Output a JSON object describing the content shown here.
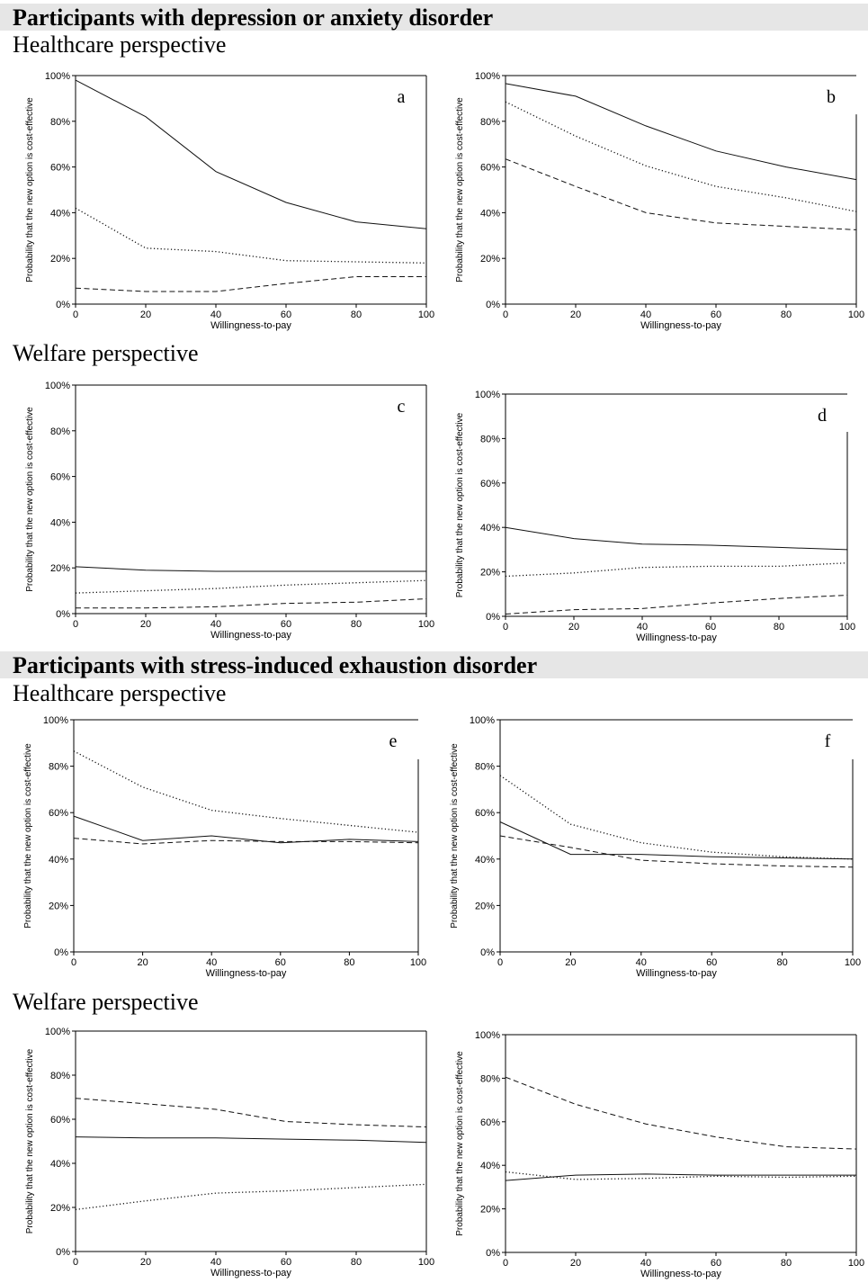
{
  "sections": [
    {
      "title": "Participants with depression or anxiety disorder",
      "healthcare_label": "Healthcare perspective",
      "welfare_label": "Welfare perspective"
    },
    {
      "title": "Participants with stress-induced exhaustion disorder",
      "healthcare_label": "Healthcare perspective",
      "welfare_label": "Welfare perspective"
    }
  ],
  "chart_data": [
    {
      "id": "a",
      "type": "line",
      "panel_label": "a",
      "xlabel": "Willingness-to-pay",
      "ylabel": "Probability that the new option is cost-effective",
      "x": [
        0,
        20,
        40,
        60,
        80,
        100
      ],
      "xlim": [
        0,
        100
      ],
      "ylim": [
        0,
        100
      ],
      "xticks": [
        "0",
        "20",
        "40",
        "60",
        "80",
        "100"
      ],
      "yticks": [
        "0%",
        "20%",
        "40%",
        "60%",
        "80%",
        "100%"
      ],
      "series": [
        {
          "name": "solid",
          "dash": "solid",
          "values": [
            98,
            82,
            58,
            44.5,
            36,
            33
          ]
        },
        {
          "name": "dotted",
          "dash": "dotted",
          "values": [
            42,
            24.5,
            23,
            19,
            18.5,
            18
          ]
        },
        {
          "name": "dashed",
          "dash": "dashed",
          "values": [
            7,
            5.5,
            5.5,
            9,
            12,
            12
          ]
        }
      ]
    },
    {
      "id": "b",
      "type": "line",
      "panel_label": "b",
      "xlabel": "Willingness-to-pay",
      "ylabel": "Probability that the new option is cost-effective",
      "x": [
        0,
        20,
        40,
        60,
        80,
        100
      ],
      "xlim": [
        0,
        100
      ],
      "ylim": [
        0,
        100
      ],
      "xticks": [
        "0",
        "20",
        "40",
        "60",
        "80",
        "100"
      ],
      "yticks": [
        "0%",
        "20%",
        "40%",
        "60%",
        "80%",
        "100%"
      ],
      "series": [
        {
          "name": "solid",
          "dash": "solid",
          "values": [
            96.5,
            91,
            78,
            67,
            60,
            54.5
          ]
        },
        {
          "name": "dotted",
          "dash": "dotted",
          "values": [
            88.5,
            73.5,
            60.5,
            51.5,
            46.5,
            40.5
          ]
        },
        {
          "name": "dashed",
          "dash": "dashed",
          "values": [
            63.5,
            51.5,
            40,
            35.5,
            34,
            32.5
          ]
        }
      ]
    },
    {
      "id": "c",
      "type": "line",
      "panel_label": "c",
      "xlabel": "Willingness-to-pay",
      "ylabel": "Probability that the new option is cost-effective",
      "x": [
        0,
        20,
        40,
        60,
        80,
        100
      ],
      "xlim": [
        0,
        100
      ],
      "ylim": [
        0,
        100
      ],
      "xticks": [
        "0",
        "20",
        "40",
        "60",
        "80",
        "100"
      ],
      "yticks": [
        "0%",
        "20%",
        "40%",
        "60%",
        "80%",
        "100%"
      ],
      "series": [
        {
          "name": "solid",
          "dash": "solid",
          "values": [
            20.5,
            19,
            18.5,
            18.5,
            18.5,
            18.5
          ]
        },
        {
          "name": "dotted",
          "dash": "dotted",
          "values": [
            9,
            10,
            11,
            12.5,
            13.5,
            14.5
          ]
        },
        {
          "name": "dashed",
          "dash": "dashed",
          "values": [
            2.5,
            2.5,
            3,
            4.5,
            5,
            6.5
          ]
        }
      ]
    },
    {
      "id": "d",
      "type": "line",
      "panel_label": "d",
      "xlabel": "Willingness-to-pay",
      "ylabel": "Probability that the new option is cost-effective",
      "x": [
        0,
        20,
        40,
        60,
        80,
        100
      ],
      "xlim": [
        0,
        100
      ],
      "ylim": [
        0,
        100
      ],
      "xticks": [
        "0",
        "20",
        "40",
        "60",
        "80",
        "100"
      ],
      "yticks": [
        "0%",
        "20%",
        "40%",
        "60%",
        "80%",
        "100%"
      ],
      "series": [
        {
          "name": "solid",
          "dash": "solid",
          "values": [
            40,
            35,
            32.5,
            32,
            31,
            30
          ]
        },
        {
          "name": "dotted",
          "dash": "dotted",
          "values": [
            18,
            19.5,
            22,
            22.5,
            22.5,
            24
          ]
        },
        {
          "name": "dashed",
          "dash": "dashed",
          "values": [
            1,
            3,
            3.5,
            6,
            8,
            9.5
          ]
        }
      ]
    },
    {
      "id": "e",
      "type": "line",
      "panel_label": "e",
      "xlabel": "Willingness-to-pay",
      "ylabel": "Probability that the new option is cost-effective",
      "x": [
        0,
        20,
        40,
        60,
        80,
        100
      ],
      "xlim": [
        0,
        100
      ],
      "ylim": [
        0,
        100
      ],
      "xticks": [
        "0",
        "20",
        "40",
        "60",
        "80",
        "100"
      ],
      "yticks": [
        "0%",
        "20%",
        "40%",
        "60%",
        "80%",
        "100%"
      ],
      "series": [
        {
          "name": "dotted",
          "dash": "dotted",
          "values": [
            86.5,
            71,
            61,
            57.5,
            54.5,
            51.5
          ]
        },
        {
          "name": "solid",
          "dash": "solid",
          "values": [
            58.5,
            48,
            50,
            47,
            48.5,
            47.5
          ]
        },
        {
          "name": "dashed",
          "dash": "dashed",
          "values": [
            49,
            46.5,
            48,
            47.5,
            47.5,
            47
          ]
        }
      ]
    },
    {
      "id": "f",
      "type": "line",
      "panel_label": "f",
      "xlabel": "Willingness-to-pay",
      "ylabel": "Probability that the new option is cost-effective",
      "x": [
        0,
        20,
        40,
        60,
        80,
        100
      ],
      "xlim": [
        0,
        100
      ],
      "ylim": [
        0,
        100
      ],
      "xticks": [
        "0",
        "20",
        "40",
        "60",
        "80",
        "100"
      ],
      "yticks": [
        "0%",
        "20%",
        "40%",
        "60%",
        "80%",
        "100%"
      ],
      "series": [
        {
          "name": "dotted",
          "dash": "dotted",
          "values": [
            76,
            55,
            47,
            43,
            41,
            40
          ]
        },
        {
          "name": "solid",
          "dash": "solid",
          "values": [
            56,
            42,
            42,
            41,
            40.5,
            40
          ]
        },
        {
          "name": "dashed",
          "dash": "dashed",
          "values": [
            50,
            45,
            39.5,
            38,
            37,
            36.5
          ]
        }
      ]
    },
    {
      "id": "g",
      "type": "line",
      "panel_label": "",
      "xlabel": "Willingness-to-pay",
      "ylabel": "Probability that the new option is cost-effective",
      "x": [
        0,
        20,
        40,
        60,
        80,
        100
      ],
      "xlim": [
        0,
        100
      ],
      "ylim": [
        0,
        100
      ],
      "xticks": [
        "0",
        "20",
        "40",
        "60",
        "80",
        "100"
      ],
      "yticks": [
        "0%",
        "20%",
        "40%",
        "60%",
        "80%",
        "100%"
      ],
      "series": [
        {
          "name": "dashed",
          "dash": "dashed",
          "values": [
            69.5,
            67,
            64.5,
            59,
            57.5,
            56.5
          ]
        },
        {
          "name": "solid",
          "dash": "solid",
          "values": [
            52,
            51.5,
            51.5,
            51,
            50.5,
            49.5
          ]
        },
        {
          "name": "dotted",
          "dash": "dotted",
          "values": [
            19,
            23,
            26.5,
            27.5,
            29,
            30.5
          ]
        }
      ]
    },
    {
      "id": "h",
      "type": "line",
      "panel_label": "",
      "xlabel": "Willingness-to-pay",
      "ylabel": "Probability that the new option is cost-effective",
      "x": [
        0,
        20,
        40,
        60,
        80,
        100
      ],
      "xlim": [
        0,
        100
      ],
      "ylim": [
        0,
        100
      ],
      "xticks": [
        "0",
        "20",
        "40",
        "60",
        "80",
        "100"
      ],
      "yticks": [
        "0%",
        "20%",
        "40%",
        "60%",
        "80%",
        "100%"
      ],
      "series": [
        {
          "name": "dashed",
          "dash": "dashed",
          "values": [
            80.5,
            68,
            59,
            53,
            48.5,
            47.5
          ]
        },
        {
          "name": "dotted",
          "dash": "dotted",
          "values": [
            37,
            33.5,
            34,
            35,
            34.5,
            35
          ]
        },
        {
          "name": "solid",
          "dash": "solid",
          "values": [
            33,
            35.5,
            36,
            35.5,
            35.5,
            35.5
          ]
        }
      ]
    }
  ]
}
